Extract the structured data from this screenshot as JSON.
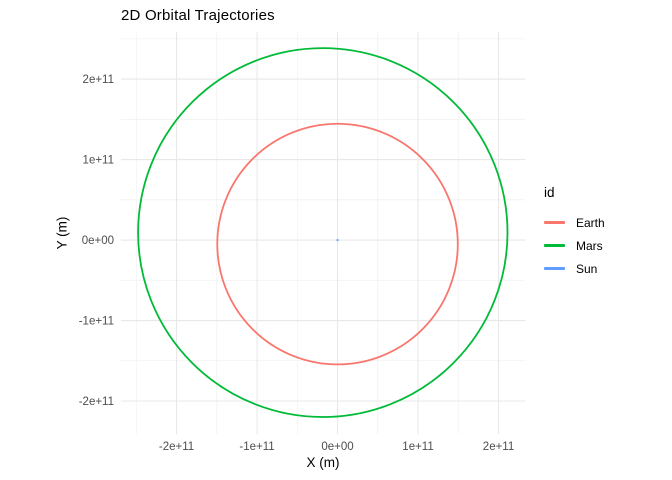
{
  "colors": {
    "background": "#FFFFFF",
    "grid_major": "#E8E8E8",
    "grid_minor": "#F1F1F1",
    "tick_label": "#4D4D4D",
    "axis_title": "#000000"
  },
  "chart_data": {
    "type": "line",
    "title": "2D Orbital Trajectories",
    "xlabel": "X (m)",
    "ylabel": "Y (m)",
    "grid": {
      "major": true,
      "minor": true
    },
    "legend": {
      "title": "id",
      "position": "right",
      "entries": [
        "Earth",
        "Mars",
        "Sun"
      ]
    },
    "xlim": [
      -269000000000.0,
      233500000000.0
    ],
    "ylim": [
      -241000000000.0,
      258500000000.0
    ],
    "xticks": {
      "values": [
        -200000000000.0,
        -100000000000.0,
        0,
        100000000000.0,
        200000000000.0
      ],
      "labels": [
        "-2e+11",
        "-1e+11",
        "0e+00",
        "1e+11",
        "2e+11"
      ]
    },
    "yticks": {
      "values": [
        -200000000000.0,
        -100000000000.0,
        0,
        100000000000.0,
        200000000000.0
      ],
      "labels": [
        "-2e+11",
        "-1e+11",
        "0e+00",
        "1e+11",
        "2e+11"
      ]
    },
    "series": [
      {
        "name": "Earth",
        "color": "#F8766D",
        "geometry": "ellipse",
        "center_x": 0,
        "center_y": -5000000000.0,
        "radius_x": 149400000000.0,
        "radius_y": 149500000000.0
      },
      {
        "name": "Mars",
        "color": "#00BA38",
        "geometry": "ellipse",
        "center_x": -18300000000.0,
        "center_y": 9300000000.0,
        "radius_x": 229450000000.0,
        "radius_y": 229200000000.0
      },
      {
        "name": "Sun",
        "color": "#619CFF",
        "geometry": "point",
        "center_x": 0,
        "center_y": 0,
        "radius_px": 1.1
      }
    ]
  }
}
